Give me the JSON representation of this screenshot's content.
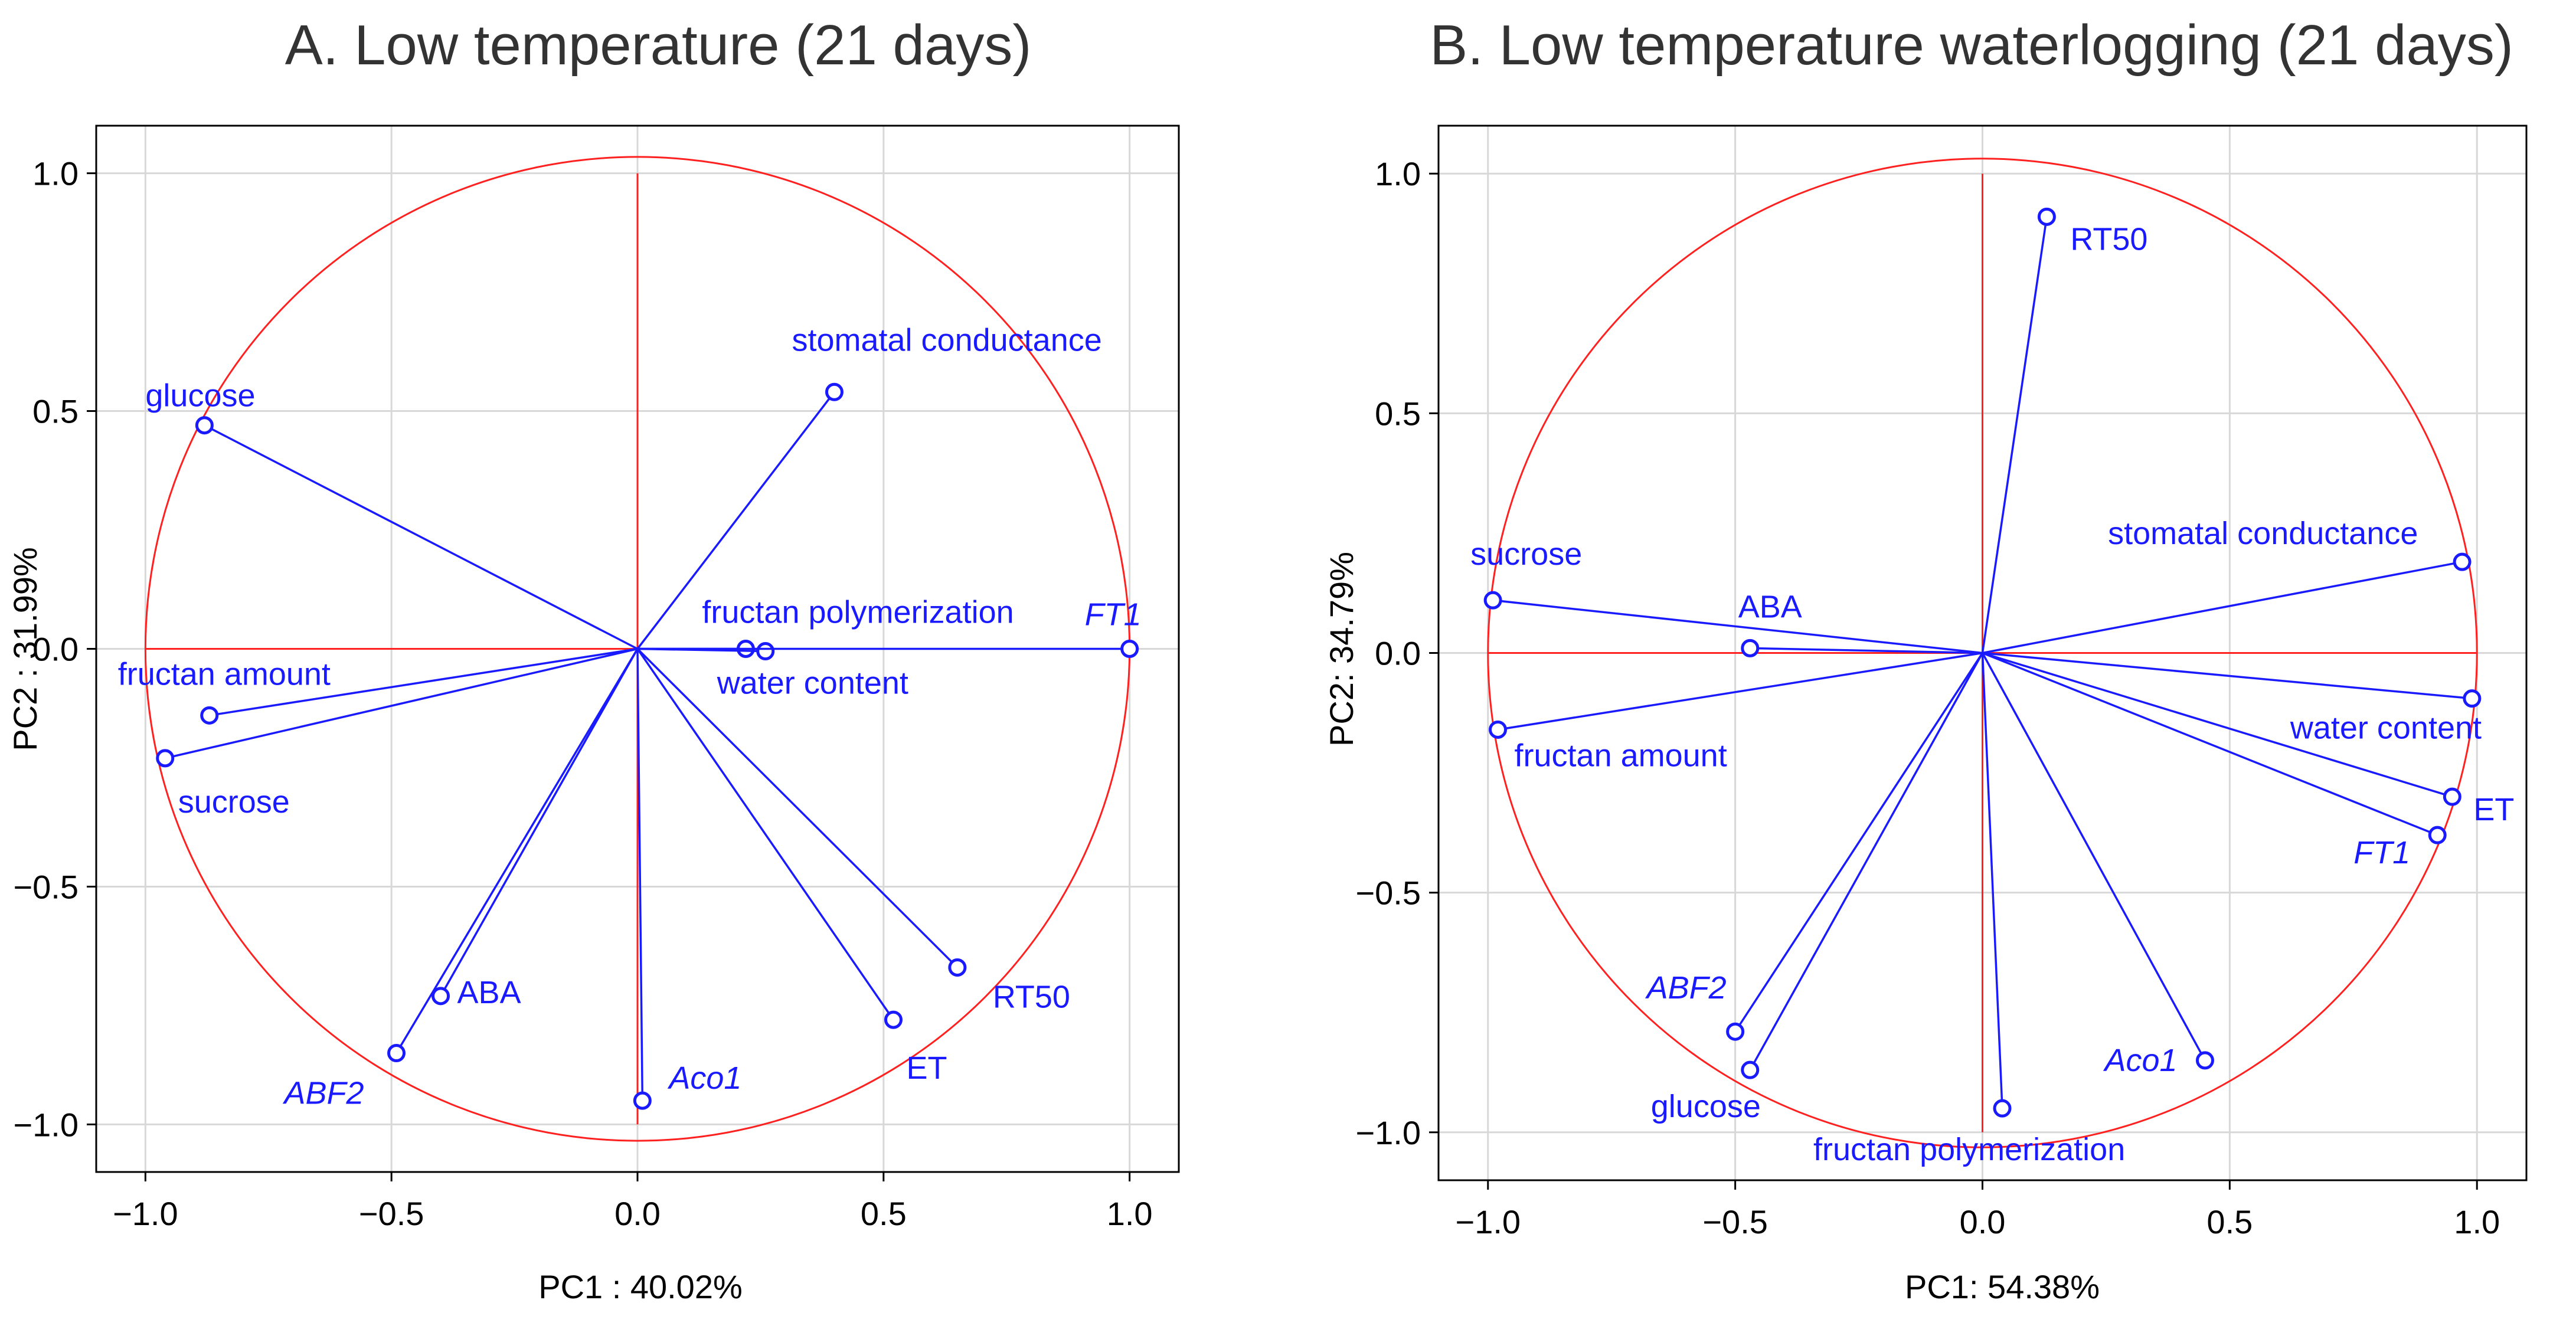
{
  "colors": {
    "vector": "#1a1aff",
    "circle": "#ff2020",
    "grid": "#d8d8d8",
    "text": "#000000"
  },
  "chart_data": [
    {
      "type": "scatter",
      "title": "A. Low temperature (21 days)",
      "xlabel": "PC1 : 40.02%",
      "ylabel": "PC2 : 31.99%",
      "xlim": [
        -1.1,
        1.1
      ],
      "ylim": [
        -1.1,
        1.1
      ],
      "xticks": [
        "-1.0",
        "-0.5",
        "0.0",
        "0.5",
        "1.0"
      ],
      "yticks": [
        "1.0",
        "0.5",
        "0.0",
        "-0.5",
        "-1.0"
      ],
      "grid": true,
      "unit_circle": true,
      "points": [
        {
          "label": "glucose",
          "x": -0.88,
          "y": 0.47,
          "italic": false
        },
        {
          "label": "stomatal conductance",
          "x": 0.4,
          "y": 0.54,
          "italic": false
        },
        {
          "label": "fructan polymerization",
          "x": 0.22,
          "y": 0.0,
          "italic": false
        },
        {
          "label": "water content",
          "x": 0.26,
          "y": -0.005,
          "italic": false
        },
        {
          "label": "FT1",
          "x": 1.0,
          "y": 0.0,
          "italic": true
        },
        {
          "label": "fructan amount",
          "x": -0.87,
          "y": -0.14,
          "italic": false
        },
        {
          "label": "sucrose",
          "x": -0.96,
          "y": -0.23,
          "italic": false
        },
        {
          "label": "ABA",
          "x": -0.4,
          "y": -0.73,
          "italic": false
        },
        {
          "label": "ABF2",
          "x": -0.49,
          "y": -0.85,
          "italic": true
        },
        {
          "label": "Aco1",
          "x": 0.01,
          "y": -0.95,
          "italic": true
        },
        {
          "label": "ET",
          "x": 0.52,
          "y": -0.78,
          "italic": false
        },
        {
          "label": "RT50",
          "x": 0.65,
          "y": -0.67,
          "italic": false
        }
      ]
    },
    {
      "type": "scatter",
      "title": "B. Low temperature waterlogging (21 days)",
      "xlabel": "PC1: 54.38%",
      "ylabel": "PC2: 34.79%",
      "xlim": [
        -1.1,
        1.1
      ],
      "ylim": [
        -1.1,
        1.1
      ],
      "xticks": [
        "-1.0",
        "-0.5",
        "0.0",
        "0.5",
        "1.0"
      ],
      "yticks": [
        "1.0",
        "0.5",
        "0.0",
        "-0.5",
        "-1.0"
      ],
      "grid": true,
      "unit_circle": true,
      "points": [
        {
          "label": "RT50",
          "x": 0.13,
          "y": 0.91,
          "italic": false
        },
        {
          "label": "sucrose",
          "x": -0.99,
          "y": 0.11,
          "italic": false
        },
        {
          "label": "ABA",
          "x": -0.47,
          "y": 0.01,
          "italic": false
        },
        {
          "label": "fructan amount",
          "x": -0.98,
          "y": -0.16,
          "italic": false
        },
        {
          "label": "stomatal conductance",
          "x": 0.97,
          "y": 0.19,
          "italic": false
        },
        {
          "label": "water content",
          "x": 0.99,
          "y": -0.095,
          "italic": false
        },
        {
          "label": "ET",
          "x": 0.95,
          "y": -0.3,
          "italic": false
        },
        {
          "label": "FT1",
          "x": 0.92,
          "y": -0.38,
          "italic": true
        },
        {
          "label": "ABF2",
          "x": -0.5,
          "y": -0.79,
          "italic": true
        },
        {
          "label": "glucose",
          "x": -0.47,
          "y": -0.87,
          "italic": false
        },
        {
          "label": "fructan polymerization",
          "x": 0.04,
          "y": -0.95,
          "italic": false
        },
        {
          "label": "Aco1",
          "x": 0.45,
          "y": -0.85,
          "italic": true
        }
      ]
    }
  ]
}
